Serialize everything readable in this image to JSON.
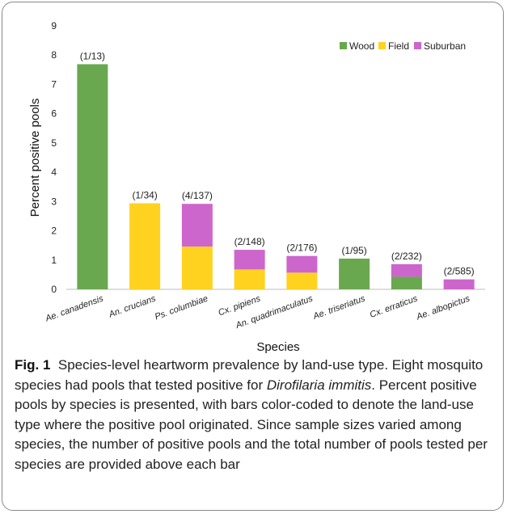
{
  "chart_data": {
    "type": "bar",
    "stacked": true,
    "categories": [
      "Ae. canadensis",
      "An. crucians",
      "Ps. columbiae",
      "Cx. pipiens",
      "An. quadrimaculatus",
      "Ae. triseriatus",
      "Cx. erraticus",
      "Ae. albopictus"
    ],
    "series": [
      {
        "name": "Wood",
        "color": "#6aa84f",
        "values": [
          7.69,
          0,
          0,
          0,
          0,
          1.05,
          0.43,
          0
        ]
      },
      {
        "name": "Field",
        "color": "#ffd21f",
        "values": [
          0,
          2.94,
          1.46,
          0.68,
          0.57,
          0,
          0,
          0
        ]
      },
      {
        "name": "Suburban",
        "color": "#cc66cc",
        "values": [
          0,
          0,
          1.46,
          0.67,
          0.57,
          0,
          0.43,
          0.34
        ]
      }
    ],
    "data_labels": [
      "(1/13)",
      "(1/34)",
      "(4/137)",
      "(2/148)",
      "(2/176)",
      "(1/95)",
      "(2/232)",
      "(2/585)"
    ],
    "xlabel": "Species",
    "ylabel": "Percent positive pools",
    "ylim": [
      0,
      9
    ],
    "yticks": [
      0,
      1,
      2,
      3,
      4,
      5,
      6,
      7,
      8,
      9
    ],
    "grid": false,
    "legend": "top-right"
  },
  "caption": {
    "fig_label": "Fig. 1",
    "text_before_italic": "Species-level heartworm prevalence by land-use type. Eight mosquito species had pools that tested positive for ",
    "italic": "Dirofilaria immitis",
    "text_after_italic": ". Percent positive pools by species is presented, with bars color-coded to denote the land-use type where the positive pool originated. Since sample sizes varied among species, the number of positive pools and the total number of pools tested per species are provided above each bar"
  }
}
